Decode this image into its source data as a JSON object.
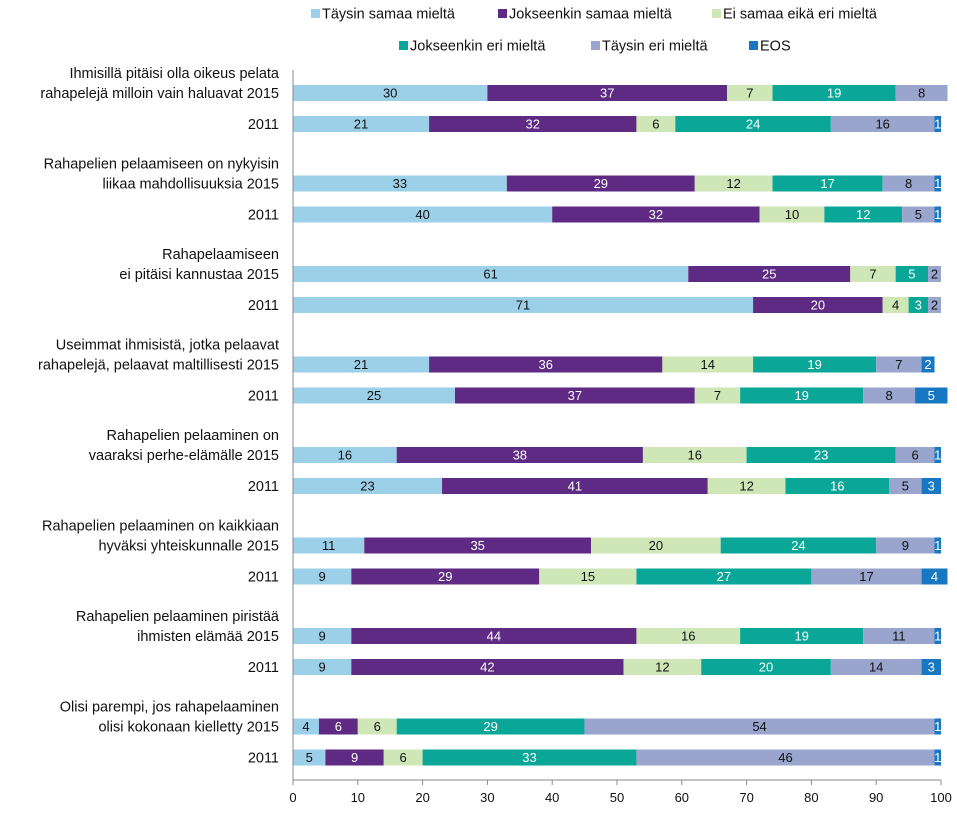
{
  "colors": {
    "Täysin samaa mieltä": "#9ccfe8",
    "Jokseenkin samaa mieltä": "#5e2a84",
    "Ei samaa eikä eri mieltä": "#cfe6b6",
    "Jokseenkin eri mieltä": "#0aa698",
    "Täysin eri mieltä": "#9aa5cd",
    "EOS": "#1777c0"
  },
  "label_colors": {
    "Täysin samaa mieltä": "#111111",
    "Jokseenkin samaa mieltä": "#ffffff",
    "Ei samaa eikä eri mieltä": "#111111",
    "Jokseenkin eri mieltä": "#ffffff",
    "Täysin eri mieltä": "#111111",
    "EOS": "#ffffff"
  },
  "chart_data": {
    "type": "bar",
    "orientation": "horizontal",
    "stacked": true,
    "title": "",
    "xlabel": "",
    "ylabel": "",
    "xlim": [
      0,
      100
    ],
    "xticks": [
      0,
      10,
      20,
      30,
      40,
      50,
      60,
      70,
      80,
      90,
      100
    ],
    "grid": false,
    "legend_position": "top",
    "series_names": [
      "Täysin samaa mieltä",
      "Jokseenkin samaa mieltä",
      "Ei samaa eikä eri mieltä",
      "Jokseenkin eri mieltä",
      "Täysin eri mieltä",
      "EOS"
    ],
    "groups": [
      {
        "statement": [
          "Ihmisillä pitäisi olla oikeus pelata",
          "rahapelejä milloin vain haluavat 2015"
        ],
        "rows": [
          {
            "year": "2015",
            "values": [
              30,
              37,
              7,
              19,
              8,
              0
            ],
            "labels": [
              "30",
              "37",
              "7",
              "19",
              "8",
              ""
            ]
          },
          {
            "year": "2011",
            "values": [
              21,
              32,
              6,
              24,
              16,
              1
            ],
            "labels": [
              "21",
              "32",
              "6",
              "24",
              "16",
              "1"
            ]
          }
        ]
      },
      {
        "statement": [
          "Rahapelien pelaamiseen on nykyisin",
          "liikaa mahdollisuuksia 2015"
        ],
        "rows": [
          {
            "year": "2015",
            "values": [
              33,
              29,
              12,
              17,
              8,
              1
            ],
            "labels": [
              "33",
              "29",
              "12",
              "17",
              "8",
              "1"
            ]
          },
          {
            "year": "2011",
            "values": [
              40,
              32,
              10,
              12,
              5,
              1
            ],
            "labels": [
              "40",
              "32",
              "10",
              "12",
              "5",
              "1"
            ]
          }
        ]
      },
      {
        "statement": [
          "Rahapelaamiseen",
          "ei pitäisi kannustaa 2015"
        ],
        "rows": [
          {
            "year": "2015",
            "values": [
              61,
              25,
              7,
              5,
              2,
              0
            ],
            "labels": [
              "61",
              "25",
              "7",
              "5",
              "2",
              ""
            ]
          },
          {
            "year": "2011",
            "values": [
              71,
              20,
              4,
              3,
              2,
              0
            ],
            "labels": [
              "71",
              "20",
              "4",
              "3",
              "2",
              ""
            ]
          }
        ]
      },
      {
        "statement": [
          "Useimmat ihmisistä, jotka pelaavat",
          "rahapelejä, pelaavat maltillisesti 2015"
        ],
        "rows": [
          {
            "year": "2015",
            "values": [
              21,
              36,
              14,
              19,
              7,
              2
            ],
            "labels": [
              "21",
              "36",
              "14",
              "19",
              "7",
              "2"
            ]
          },
          {
            "year": "2011",
            "values": [
              25,
              37,
              7,
              19,
              8,
              5
            ],
            "labels": [
              "25",
              "37",
              "7",
              "19",
              "8",
              "5"
            ]
          }
        ]
      },
      {
        "statement": [
          "Rahapelien pelaaminen on",
          "vaaraksi perhe-elämälle 2015"
        ],
        "rows": [
          {
            "year": "2015",
            "values": [
              16,
              38,
              16,
              23,
              6,
              1
            ],
            "labels": [
              "16",
              "38",
              "16",
              "23",
              "6",
              "1"
            ]
          },
          {
            "year": "2011",
            "values": [
              23,
              41,
              12,
              16,
              5,
              3
            ],
            "labels": [
              "23",
              "41",
              "12",
              "16",
              "5",
              "3"
            ]
          }
        ]
      },
      {
        "statement": [
          "Rahapelien pelaaminen on kaikkiaan",
          "hyväksi yhteiskunnalle 2015"
        ],
        "rows": [
          {
            "year": "2015",
            "values": [
              11,
              35,
              20,
              24,
              9,
              1
            ],
            "labels": [
              "11",
              "35",
              "20",
              "24",
              "9",
              "1"
            ]
          },
          {
            "year": "2011",
            "values": [
              9,
              29,
              15,
              27,
              17,
              4
            ],
            "labels": [
              "9",
              "29",
              "15",
              "27",
              "17",
              "4"
            ]
          }
        ]
      },
      {
        "statement": [
          "Rahapelien pelaaminen piristää",
          "ihmisten elämää 2015"
        ],
        "rows": [
          {
            "year": "2015",
            "values": [
              9,
              44,
              16,
              19,
              11,
              1
            ],
            "labels": [
              "9",
              "44",
              "16",
              "19",
              "11",
              "1"
            ]
          },
          {
            "year": "2011",
            "values": [
              9,
              42,
              12,
              20,
              14,
              3
            ],
            "labels": [
              "9",
              "42",
              "12",
              "20",
              "14",
              "3"
            ]
          }
        ]
      },
      {
        "statement": [
          "Olisi parempi, jos rahapelaaminen",
          "olisi kokonaan kielletty 2015"
        ],
        "rows": [
          {
            "year": "2015",
            "values": [
              4,
              6,
              6,
              29,
              54,
              1
            ],
            "labels": [
              "4",
              "6",
              "6",
              "29",
              "54",
              "1"
            ]
          },
          {
            "year": "2011",
            "values": [
              5,
              9,
              6,
              33,
              46,
              1
            ],
            "labels": [
              "5",
              "9",
              "6",
              "33",
              "46",
              "1"
            ]
          }
        ]
      }
    ]
  }
}
